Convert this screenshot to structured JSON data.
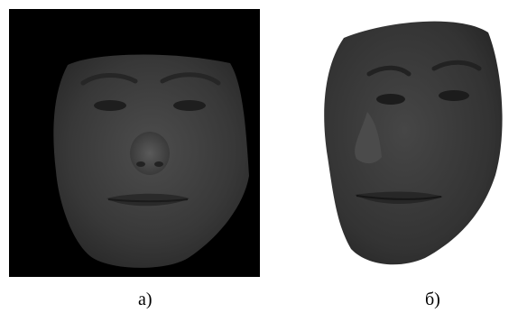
{
  "figure": {
    "panels": [
      {
        "caption": "а)",
        "background": "#000000",
        "skin_color": "#3f3f3f"
      },
      {
        "caption": "б)",
        "background": "#ffffff",
        "skin_color": "#3a3a3a"
      }
    ]
  }
}
